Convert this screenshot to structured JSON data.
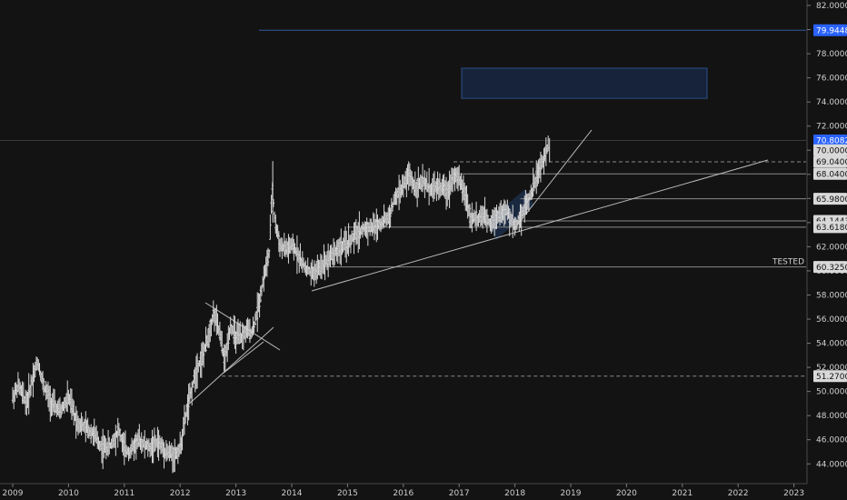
{
  "chart_data": {
    "type": "bar",
    "style": "ohlc-price-bars",
    "title": "",
    "xlabel": "",
    "ylabel": "",
    "ylim": [
      43.2,
      82.8
    ],
    "xlim": [
      2009.0,
      2023.25
    ],
    "y_ticks": [
      "44.0000",
      "46.0000",
      "48.0000",
      "50.0000",
      "52.0000",
      "54.0000",
      "56.0000",
      "58.0000",
      "60.0000",
      "62.0000",
      "64.0000",
      "66.0000",
      "68.0000",
      "70.0000",
      "72.0000",
      "74.0000",
      "76.0000",
      "78.0000",
      "80.0000",
      "82.0000"
    ],
    "x_ticks": [
      "2009",
      "2010",
      "2011",
      "2012",
      "2013",
      "2014",
      "2015",
      "2016",
      "2017",
      "2018",
      "2019",
      "2020",
      "2021",
      "2022",
      "2023"
    ],
    "price_path": [
      [
        2009.0,
        49.5
      ],
      [
        2009.1,
        50.5
      ],
      [
        2009.25,
        49.0
      ],
      [
        2009.35,
        51.0
      ],
      [
        2009.45,
        52.5
      ],
      [
        2009.55,
        50.5
      ],
      [
        2009.7,
        49.0
      ],
      [
        2009.85,
        48.3
      ],
      [
        2010.0,
        49.5
      ],
      [
        2010.15,
        47.5
      ],
      [
        2010.3,
        47.0
      ],
      [
        2010.45,
        46.5
      ],
      [
        2010.6,
        45.3
      ],
      [
        2010.75,
        45.5
      ],
      [
        2010.9,
        46.8
      ],
      [
        2011.0,
        45.2
      ],
      [
        2011.1,
        45.0
      ],
      [
        2011.25,
        46.0
      ],
      [
        2011.45,
        45.3
      ],
      [
        2011.6,
        45.8
      ],
      [
        2011.75,
        45.0
      ],
      [
        2011.9,
        44.7
      ],
      [
        2012.0,
        45.3
      ],
      [
        2012.1,
        48.0
      ],
      [
        2012.2,
        50.0
      ],
      [
        2012.3,
        52.0
      ],
      [
        2012.4,
        52.8
      ],
      [
        2012.5,
        54.5
      ],
      [
        2012.6,
        56.5
      ],
      [
        2012.7,
        55.0
      ],
      [
        2012.8,
        52.5
      ],
      [
        2012.9,
        55.5
      ],
      [
        2013.0,
        54.5
      ],
      [
        2013.1,
        54.5
      ],
      [
        2013.2,
        55.0
      ],
      [
        2013.3,
        55.0
      ],
      [
        2013.4,
        57.0
      ],
      [
        2013.5,
        59.5
      ],
      [
        2013.6,
        61.5
      ],
      [
        2013.65,
        67.0
      ],
      [
        2013.7,
        64.0
      ],
      [
        2013.8,
        62.0
      ],
      [
        2013.9,
        61.8
      ],
      [
        2014.0,
        62.0
      ],
      [
        2014.1,
        61.5
      ],
      [
        2014.2,
        60.5
      ],
      [
        2014.35,
        59.8
      ],
      [
        2014.45,
        60.0
      ],
      [
        2014.6,
        60.8
      ],
      [
        2014.75,
        61.5
      ],
      [
        2014.9,
        62.0
      ],
      [
        2015.0,
        62.2
      ],
      [
        2015.15,
        63.0
      ],
      [
        2015.3,
        63.5
      ],
      [
        2015.45,
        63.6
      ],
      [
        2015.6,
        64.0
      ],
      [
        2015.75,
        64.5
      ],
      [
        2015.85,
        66.0
      ],
      [
        2016.0,
        67.0
      ],
      [
        2016.1,
        68.0
      ],
      [
        2016.2,
        67.0
      ],
      [
        2016.35,
        67.3
      ],
      [
        2016.5,
        66.8
      ],
      [
        2016.65,
        67.0
      ],
      [
        2016.8,
        66.6
      ],
      [
        2016.9,
        68.0
      ],
      [
        2017.0,
        67.5
      ],
      [
        2017.1,
        66.5
      ],
      [
        2017.2,
        64.5
      ],
      [
        2017.3,
        64.3
      ],
      [
        2017.45,
        64.5
      ],
      [
        2017.55,
        64.0
      ],
      [
        2017.7,
        64.7
      ],
      [
        2017.85,
        64.9
      ],
      [
        2018.0,
        63.7
      ],
      [
        2018.1,
        64.5
      ],
      [
        2018.2,
        65.5
      ],
      [
        2018.3,
        66.5
      ],
      [
        2018.4,
        68.0
      ],
      [
        2018.5,
        69.0
      ],
      [
        2018.6,
        70.5
      ]
    ],
    "horizontal_levels": [
      {
        "value": 79.9448,
        "label": "79.9448",
        "style": "solid",
        "color": "#2f5a9a",
        "tag_bg": "#2962ff"
      },
      {
        "value": 70.8082,
        "label": "70.8082",
        "style": "solid",
        "color": "#3a3a3a",
        "tag_bg": "#2962ff"
      },
      {
        "value": 70.0,
        "label": "70.0000",
        "style": "tag-only",
        "color": "#777777",
        "tag_bg": "#d9d9d9"
      },
      {
        "value": 69.04,
        "label": "69.0400",
        "style": "dashed",
        "x_from": 2016.9,
        "color": "#8a8a8a",
        "tag_bg": "#d9d9d9"
      },
      {
        "value": 68.04,
        "label": "68.0400",
        "style": "solid",
        "x_from": 2016.9,
        "color": "#8a8a8a",
        "tag_bg": "#d9d9d9"
      },
      {
        "value": 65.98,
        "label": "65.9800",
        "style": "solid",
        "x_from": 2018.1,
        "color": "#8a8a8a",
        "tag_bg": "#d9d9d9"
      },
      {
        "value": 64.1443,
        "label": "64.1443",
        "style": "solid",
        "x_from": 2018.0,
        "color": "#8a8a8a",
        "tag_bg": "#d9d9d9"
      },
      {
        "value": 63.618,
        "label": "63.6180",
        "style": "solid",
        "x_from": 2015.0,
        "color": "#8a8a8a",
        "tag_bg": "#d9d9d9"
      },
      {
        "value": 60.325,
        "label": "60.3250",
        "style": "solid",
        "x_from": 2014.6,
        "color": "#8a8a8a",
        "tag_bg": "#d9d9d9",
        "text": "TESTED"
      },
      {
        "value": 51.27,
        "label": "51.2700",
        "style": "dashed",
        "x_from": 2012.75,
        "color": "#8a8a8a",
        "tag_bg": "#d9d9d9"
      }
    ],
    "trend_lines": [
      {
        "from": [
          2014.35,
          58.2
        ],
        "to": [
          2022.6,
          69.1
        ]
      },
      {
        "from": [
          2018.0,
          63.5
        ],
        "to": [
          2019.4,
          72.0
        ]
      },
      {
        "from": [
          2012.1,
          48.8
        ],
        "to": [
          2013.7,
          55.4
        ]
      },
      {
        "from": [
          2012.45,
          57.5
        ],
        "to": [
          2013.8,
          53.8
        ]
      },
      {
        "from": [
          2012.75,
          51.3
        ],
        "to": [
          2013.65,
          53.9
        ]
      }
    ],
    "zones": [
      {
        "x": [
          2016.1,
          2020.5
        ],
        "y": [
          74.3,
          76.8
        ],
        "type": "target-box"
      }
    ],
    "pattern_polygon": [
      [
        2017.5,
        64.2
      ],
      [
        2018.1,
        65.8
      ],
      [
        2018.4,
        67.0
      ],
      [
        2017.9,
        62.5
      ]
    ],
    "grid": false,
    "legend": "none"
  }
}
